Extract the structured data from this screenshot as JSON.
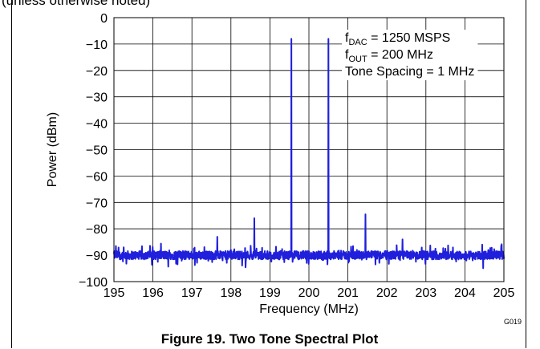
{
  "page_note": "(unless otherwise noted)",
  "caption": "Figure 19. Two Tone Spectral Plot",
  "figure_code": "G019",
  "chart_data": {
    "type": "line",
    "xlabel": "Frequency (MHz)",
    "ylabel": "Power (dBm)",
    "xlim": [
      195,
      205
    ],
    "ylim": [
      -100,
      0
    ],
    "x_ticks": [
      195,
      196,
      197,
      198,
      199,
      200,
      201,
      202,
      203,
      204,
      205
    ],
    "y_ticks": [
      0,
      -10,
      -20,
      -30,
      -40,
      -50,
      -60,
      -70,
      -80,
      -90,
      -100
    ],
    "y_tick_labels": [
      "0",
      "−10",
      "−20",
      "−30",
      "−40",
      "−50",
      "−60",
      "−70",
      "−80",
      "−90",
      "−100"
    ],
    "grid": true,
    "annotations": [
      {
        "main": "f",
        "sub": "DAC",
        "rest": " = 1250 MSPS"
      },
      {
        "main": "f",
        "sub": "OUT",
        "rest": " = 200 MHz"
      },
      {
        "main": "",
        "sub": "",
        "rest": "Tone Spacing = 1 MHz"
      }
    ],
    "noise_floor_dbm": -90,
    "series": [
      {
        "color": "#1f1fdc",
        "peaks": [
          {
            "x": 195.05,
            "y": -86.5
          },
          {
            "x": 195.25,
            "y": -87
          },
          {
            "x": 197.05,
            "y": -87.5
          },
          {
            "x": 197.65,
            "y": -83
          },
          {
            "x": 198.0,
            "y": -88
          },
          {
            "x": 198.6,
            "y": -76
          },
          {
            "x": 199.55,
            "y": -8
          },
          {
            "x": 200.5,
            "y": -8
          },
          {
            "x": 201.45,
            "y": -74.5
          },
          {
            "x": 202.4,
            "y": -84
          },
          {
            "x": 203.5,
            "y": -87.5
          },
          {
            "x": 204.6,
            "y": -88
          }
        ]
      }
    ]
  }
}
